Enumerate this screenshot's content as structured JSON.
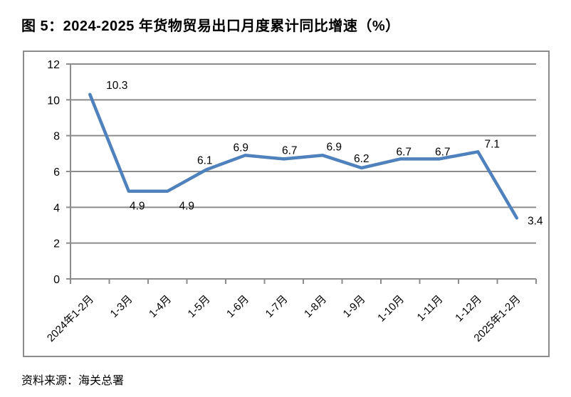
{
  "page": {
    "title": "图 5：2024-2025 年货物贸易出口月度累计同比增速（%）",
    "source": "资料来源：海关总署"
  },
  "chart_data": {
    "type": "line",
    "title": "图 5：2024-2025 年货物贸易出口月度累计同比增速（%）",
    "categories": [
      "2024年1-2月",
      "1-3月",
      "1-4月",
      "1-5月",
      "1-6月",
      "1-7月",
      "1-8月",
      "1-9月",
      "1-10月",
      "1-11月",
      "1-12月",
      "2025年1-2月"
    ],
    "values": [
      10.3,
      4.9,
      4.9,
      6.1,
      6.9,
      6.7,
      6.9,
      6.2,
      6.7,
      6.7,
      7.1,
      3.4
    ],
    "data_labels": [
      "10.3",
      "4.9",
      "4.9",
      "6.1",
      "6.9",
      "6.7",
      "6.9",
      "6.2",
      "6.7",
      "6.7",
      "7.1",
      "3.4"
    ],
    "yticks": [
      0,
      2,
      4,
      6,
      8,
      10,
      12
    ],
    "ylim": [
      0,
      12
    ],
    "xlabel": "",
    "ylabel": "",
    "grid": true,
    "legend_position": "none",
    "line_color": "#4F81BD",
    "grid_color": "#8C8C8C",
    "text_color": "#000000"
  }
}
